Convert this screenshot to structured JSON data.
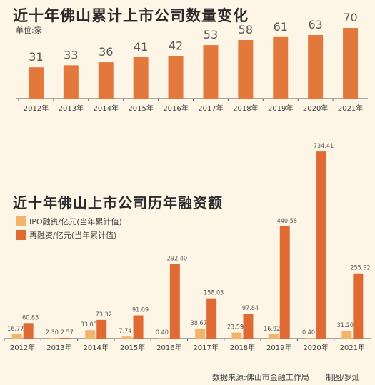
{
  "colors": {
    "background": "#fdf6e6",
    "bar_main": "#e2783b",
    "bar_ipo": "#f2b36b",
    "bar_refi": "#e06a33",
    "axis": "#555555",
    "label": "#5a5a5a"
  },
  "chart_data": [
    {
      "type": "bar",
      "title": "近十年佛山累计上市公司数量变化",
      "unit_label": "单位:家",
      "categories": [
        "2012年",
        "2013年",
        "2014年",
        "2015年",
        "2016年",
        "2017年",
        "2018年",
        "2019年",
        "2020年",
        "2021年"
      ],
      "series": [
        {
          "values": [
            31,
            33,
            36,
            41,
            42,
            53,
            58,
            61,
            63,
            70
          ]
        }
      ],
      "ylim": [
        0,
        75
      ],
      "grid": false,
      "data_labels": true
    },
    {
      "type": "bar",
      "title": "近十年佛山上市公司历年融资额",
      "categories": [
        "2012年",
        "2013年",
        "2014年",
        "2015年",
        "2016年",
        "2017年",
        "2018年",
        "2019年",
        "2020年",
        "2021年"
      ],
      "series": [
        {
          "name": "IPO融资/亿元(当年累计值)",
          "values": [
            16.77,
            2.3,
            33.03,
            7.74,
            0.4,
            38.67,
            23.59,
            16.92,
            0.4,
            31.2
          ]
        },
        {
          "name": "再融资/亿元(当年累计值)",
          "values": [
            60.85,
            2.57,
            73.32,
            91.09,
            292.4,
            158.03,
            97.84,
            440.58,
            734.41,
            255.92
          ]
        }
      ],
      "data_labels_text": {
        "ipo": [
          "16.77",
          "2.30",
          "33.03",
          "7.74",
          "0.40",
          "38.67",
          "23.59",
          "16.92",
          "0.40",
          "31.20"
        ],
        "refi": [
          "60.85",
          "2.57",
          "73.32",
          "91.09",
          "292.40",
          "158.03",
          "97.84",
          "440.58",
          "734.41",
          "255.92"
        ]
      },
      "ylim": [
        0,
        760
      ],
      "grid": false,
      "legend_position": "top-left"
    }
  ],
  "footer": {
    "source": "数据来源:佛山市金融工作局",
    "credit": "制图/罗灿"
  }
}
